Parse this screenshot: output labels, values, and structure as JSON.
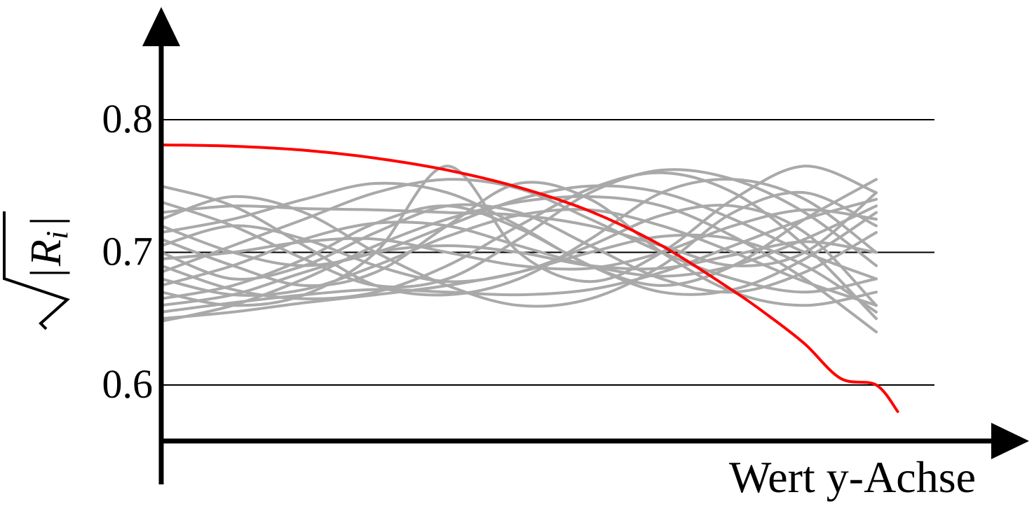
{
  "chart_data": {
    "type": "line",
    "title": "",
    "xlabel": "Wert y-Achse",
    "ylabel": "√|R_i|",
    "ylabel_parts": {
      "bar": "|",
      "symbol": "R",
      "subscript": "i"
    },
    "y_ticks": [
      0.6,
      0.7,
      0.8
    ],
    "y_tick_labels": [
      "0.6",
      "0.7",
      "0.8"
    ],
    "x_ticks": [],
    "ylim": [
      0.56,
      0.87
    ],
    "xlim": [
      0,
      1
    ],
    "grid": "horizontal at ticks",
    "colors": {
      "highlight": "#ff0000",
      "samples": "#a9a9a9",
      "axis": "#000000"
    },
    "highlight_series": {
      "x": [
        0.0,
        0.1,
        0.2,
        0.3,
        0.4,
        0.5,
        0.6,
        0.7,
        0.8,
        0.85,
        0.9,
        0.95,
        1.0,
        1.03
      ],
      "values": [
        0.781,
        0.78,
        0.777,
        0.771,
        0.762,
        0.749,
        0.731,
        0.705,
        0.671,
        0.652,
        0.631,
        0.605,
        0.6,
        0.58
      ]
    },
    "sample_x": [
      0.0,
      0.1,
      0.2,
      0.3,
      0.4,
      0.5,
      0.6,
      0.7,
      0.8,
      0.9,
      1.0
    ],
    "sample_series": [
      [
        0.75,
        0.735,
        0.705,
        0.675,
        0.668,
        0.68,
        0.71,
        0.745,
        0.755,
        0.74,
        0.7
      ],
      [
        0.738,
        0.72,
        0.695,
        0.675,
        0.68,
        0.71,
        0.745,
        0.762,
        0.755,
        0.73,
        0.69
      ],
      [
        0.73,
        0.735,
        0.733,
        0.732,
        0.73,
        0.728,
        0.72,
        0.705,
        0.69,
        0.7,
        0.745
      ],
      [
        0.725,
        0.742,
        0.73,
        0.7,
        0.675,
        0.66,
        0.665,
        0.69,
        0.73,
        0.745,
        0.72
      ],
      [
        0.72,
        0.7,
        0.69,
        0.7,
        0.72,
        0.74,
        0.75,
        0.745,
        0.725,
        0.7,
        0.68
      ],
      [
        0.715,
        0.725,
        0.74,
        0.752,
        0.745,
        0.72,
        0.69,
        0.675,
        0.69,
        0.725,
        0.755
      ],
      [
        0.71,
        0.69,
        0.675,
        0.685,
        0.72,
        0.752,
        0.74,
        0.7,
        0.67,
        0.66,
        0.67
      ],
      [
        0.705,
        0.72,
        0.71,
        0.69,
        0.678,
        0.685,
        0.705,
        0.728,
        0.735,
        0.715,
        0.66
      ],
      [
        0.7,
        0.68,
        0.69,
        0.715,
        0.735,
        0.73,
        0.705,
        0.68,
        0.67,
        0.685,
        0.715
      ],
      [
        0.695,
        0.7,
        0.708,
        0.71,
        0.7,
        0.69,
        0.688,
        0.7,
        0.72,
        0.732,
        0.725
      ],
      [
        0.69,
        0.672,
        0.665,
        0.67,
        0.69,
        0.72,
        0.748,
        0.76,
        0.745,
        0.705,
        0.65
      ],
      [
        0.685,
        0.705,
        0.725,
        0.745,
        0.755,
        0.748,
        0.725,
        0.7,
        0.68,
        0.67,
        0.68
      ],
      [
        0.68,
        0.668,
        0.672,
        0.69,
        0.712,
        0.728,
        0.732,
        0.72,
        0.7,
        0.678,
        0.66
      ],
      [
        0.675,
        0.69,
        0.71,
        0.722,
        0.72,
        0.705,
        0.69,
        0.682,
        0.69,
        0.71,
        0.735
      ],
      [
        0.67,
        0.66,
        0.668,
        0.7,
        0.765,
        0.7,
        0.678,
        0.7,
        0.74,
        0.765,
        0.745
      ],
      [
        0.665,
        0.675,
        0.695,
        0.722,
        0.735,
        0.718,
        0.69,
        0.67,
        0.672,
        0.695,
        0.73
      ],
      [
        0.66,
        0.668,
        0.685,
        0.7,
        0.705,
        0.7,
        0.69,
        0.688,
        0.698,
        0.708,
        0.7
      ],
      [
        0.655,
        0.662,
        0.668,
        0.672,
        0.67,
        0.668,
        0.672,
        0.685,
        0.705,
        0.725,
        0.74
      ],
      [
        0.65,
        0.655,
        0.662,
        0.668,
        0.675,
        0.685,
        0.7,
        0.712,
        0.71,
        0.69,
        0.655
      ],
      [
        0.648,
        0.66,
        0.68,
        0.705,
        0.725,
        0.738,
        0.742,
        0.735,
        0.712,
        0.68,
        0.64
      ]
    ]
  }
}
